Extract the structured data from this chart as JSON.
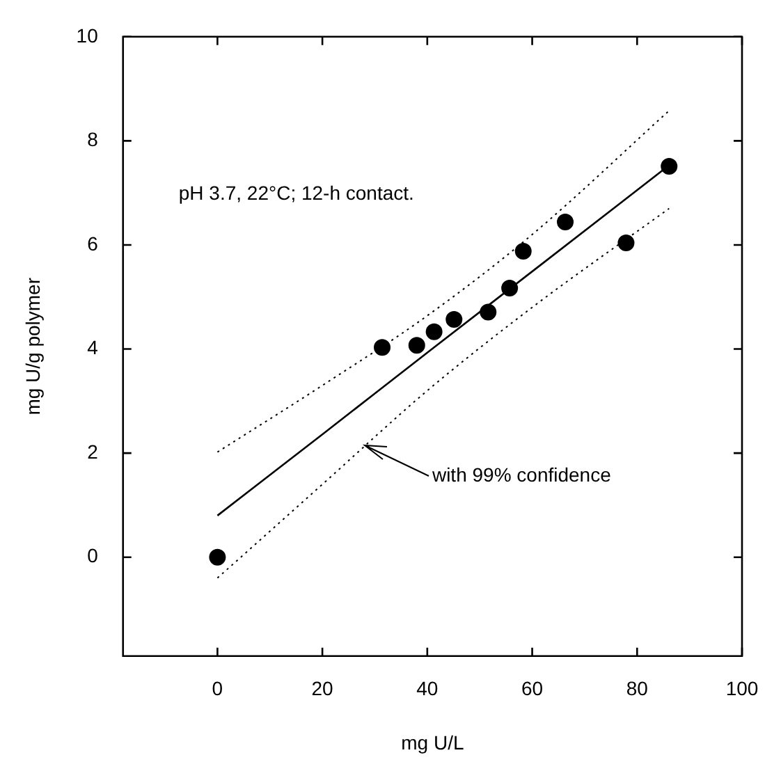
{
  "chart_data": {
    "type": "scatter",
    "xlabel": "mg U/L",
    "ylabel": "mg U/g polymer",
    "xlim": [
      -18,
      100
    ],
    "xticks": [
      0,
      20,
      40,
      60,
      80,
      100
    ],
    "ylim": [
      -1.9,
      10
    ],
    "yticks": [
      0,
      2,
      4,
      6,
      8,
      10
    ],
    "series": [
      {
        "color": "#000000",
        "marker": "circle",
        "x": [
          0,
          31.4,
          38.0,
          41.3,
          45.1,
          51.6,
          55.7,
          58.3,
          66.3,
          77.9,
          86.1
        ],
        "values": [
          0,
          4.03,
          4.07,
          4.33,
          4.57,
          4.71,
          5.17,
          5.88,
          6.44,
          6.04,
          7.51
        ]
      },
      {
        "type": "line",
        "color": "#000000",
        "line_style": "solid",
        "x": [
          0,
          20,
          40,
          60,
          86.1
        ],
        "values": [
          0.8,
          2.36,
          3.93,
          5.49,
          7.53
        ]
      },
      {
        "type": "line",
        "color": "#000000",
        "line_style": "dotted",
        "x": [
          0,
          20,
          40,
          60,
          86.1
        ],
        "values": [
          -0.4,
          1.4,
          3.2,
          4.8,
          6.7
        ]
      },
      {
        "type": "line",
        "color": "#000000",
        "line_style": "dotted",
        "x": [
          0,
          20,
          40,
          60,
          86.1
        ],
        "values": [
          2.02,
          3.3,
          4.64,
          6.2,
          8.58
        ]
      }
    ],
    "annotations": [
      "pH 3.7, 22°C; 12-h contact.",
      {
        "text": "with 99% confidence",
        "x": 28.2,
        "y": 2.14
      }
    ]
  }
}
